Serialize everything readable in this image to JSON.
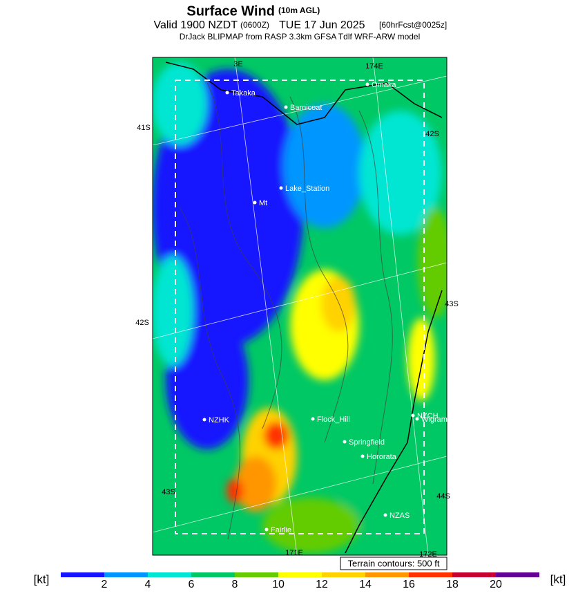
{
  "header": {
    "title": "Surface Wind",
    "title_note": "(10m AGL)",
    "valid": "Valid 1900 NZDT",
    "utc": "(0600Z)",
    "date": "TUE 17 Jun 2025",
    "forecast": "[60hrFcst@0025z]",
    "source": "DrJack BLIPMAP from RASP 3.3km GFSA Tdlf WRF-ARW model"
  },
  "places": [
    "Takaka",
    "Barnicoat",
    "Omaka",
    "Lake_Station",
    "Mt",
    "NZHK",
    "Flock_Hill",
    "NZCH",
    "Wigram",
    "Springfield",
    "Hororata",
    "NZAS",
    "Fairlie"
  ],
  "grid_labels": [
    "41S",
    "42S",
    "43S",
    "42S",
    "43S",
    "44S",
    "3E",
    "174E",
    "171E",
    "172E"
  ],
  "terrain_note": "Terrain contours: 500 ft",
  "colorbar": {
    "unit_left": "[kt]",
    "unit_right": "[kt]",
    "ticks": [
      2,
      4,
      6,
      8,
      10,
      12,
      14,
      16,
      18,
      20
    ],
    "colors": [
      "#1414ff",
      "#0096ff",
      "#00e6d2",
      "#00c864",
      "#64cc00",
      "#ffff00",
      "#ffd200",
      "#ff9600",
      "#ff3200",
      "#c80032",
      "#640096"
    ]
  }
}
